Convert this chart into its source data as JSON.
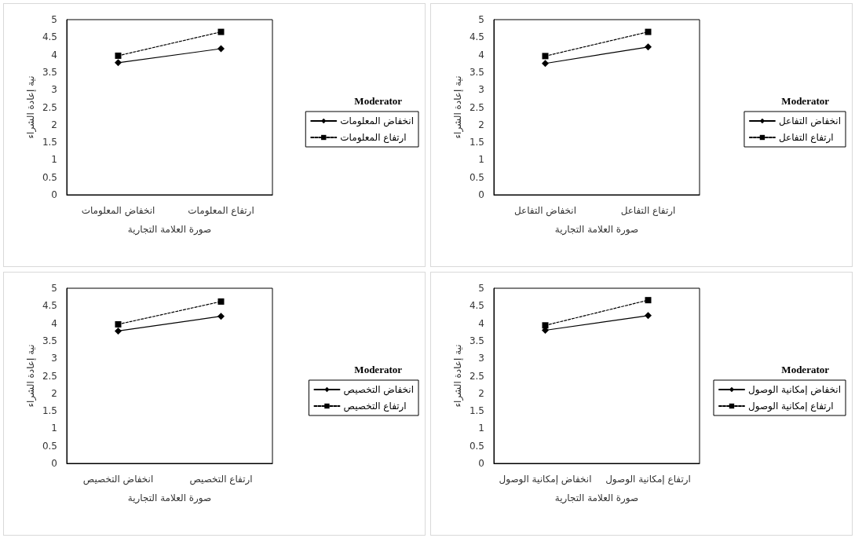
{
  "chart_data": [
    {
      "type": "line",
      "xlabel": "صورة العلامة التجارية",
      "ylabel": "نية إعادة الشراء",
      "legend_title": "Moderator",
      "legend": "right",
      "grid": false,
      "categories": [
        "انخفاض المعلومات",
        "ارتفاع المعلومات"
      ],
      "ylim": [
        0,
        5
      ],
      "yticks": [
        0,
        0.5,
        1,
        1.5,
        2,
        2.5,
        3,
        3.5,
        4,
        4.5,
        5
      ],
      "series": [
        {
          "name": "انخفاض المعلومات",
          "color": "#000000",
          "marker": "diamond",
          "line_style": "solid",
          "values": [
            3.77,
            4.17
          ]
        },
        {
          "name": "ارتفاع المعلومات",
          "color": "#000000",
          "marker": "square",
          "line_style": "dashed",
          "values": [
            3.97,
            4.65
          ]
        }
      ]
    },
    {
      "type": "line",
      "xlabel": "صورة العلامة التجارية",
      "ylabel": "نية إعادة الشراء",
      "legend_title": "Moderator",
      "legend": "right",
      "grid": false,
      "categories": [
        "انخفاض التفاعل",
        "ارتفاع التفاعل"
      ],
      "ylim": [
        0,
        5
      ],
      "yticks": [
        0,
        0.5,
        1,
        1.5,
        2,
        2.5,
        3,
        3.5,
        4,
        4.5,
        5
      ],
      "series": [
        {
          "name": "انخفاض التفاعل",
          "color": "#000000",
          "marker": "diamond",
          "line_style": "solid",
          "values": [
            3.75,
            4.22
          ]
        },
        {
          "name": "ارتفاع التفاعل",
          "color": "#000000",
          "marker": "square",
          "line_style": "dashed",
          "values": [
            3.96,
            4.65
          ]
        }
      ]
    },
    {
      "type": "line",
      "xlabel": "صورة العلامة التجارية",
      "ylabel": "نية إعادة الشراء",
      "legend_title": "Moderator",
      "legend": "right",
      "grid": false,
      "categories": [
        "انخفاض التخصيص",
        "ارتفاع التخصيص"
      ],
      "ylim": [
        0,
        5
      ],
      "yticks": [
        0,
        0.5,
        1,
        1.5,
        2,
        2.5,
        3,
        3.5,
        4,
        4.5,
        5
      ],
      "series": [
        {
          "name": "انخفاض التخصيص",
          "color": "#000000",
          "marker": "diamond",
          "line_style": "solid",
          "values": [
            3.78,
            4.2
          ]
        },
        {
          "name": "ارتفاع التخصيص",
          "color": "#000000",
          "marker": "square",
          "line_style": "dashed",
          "values": [
            3.97,
            4.62
          ]
        }
      ]
    },
    {
      "type": "line",
      "xlabel": "صورة العلامة التجارية",
      "ylabel": "نية إعادة الشراء",
      "legend_title": "Moderator",
      "legend": "right",
      "grid": false,
      "categories": [
        "انخفاض إمكانية الوصول",
        "ارتفاع إمكانية الوصول"
      ],
      "ylim": [
        0,
        5
      ],
      "yticks": [
        0,
        0.5,
        1,
        1.5,
        2,
        2.5,
        3,
        3.5,
        4,
        4.5,
        5
      ],
      "series": [
        {
          "name": "انخفاض إمكانية الوصول",
          "color": "#000000",
          "marker": "diamond",
          "line_style": "solid",
          "values": [
            3.8,
            4.22
          ]
        },
        {
          "name": "ارتفاع إمكانية الوصول",
          "color": "#000000",
          "marker": "square",
          "line_style": "dashed",
          "values": [
            3.94,
            4.66
          ]
        }
      ]
    }
  ]
}
